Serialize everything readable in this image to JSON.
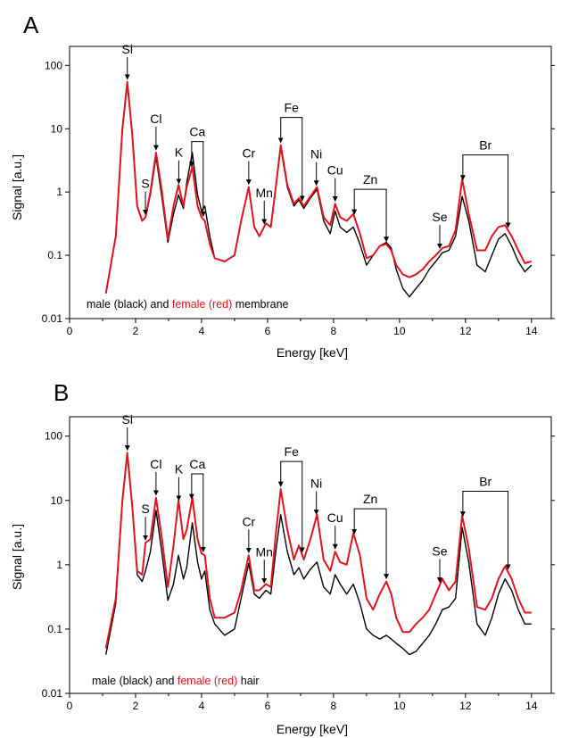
{
  "colors": {
    "male": "#000000",
    "female": "#e0141e",
    "axis": "#000000"
  },
  "chart_data": [
    {
      "type": "line",
      "panel_label": "A",
      "xlabel": "Energy [keV]",
      "ylabel": "Signal [a.u.]",
      "xlim": [
        0,
        14.6
      ],
      "ylim": [
        0.01,
        200
      ],
      "yscale": "log",
      "x_ticks": [
        "0",
        "2",
        "4",
        "6",
        "8",
        "10",
        "12",
        "14"
      ],
      "y_ticks": [
        "0.01",
        "0.1",
        "1",
        "10",
        "100"
      ],
      "caption": {
        "before": "male (black) and ",
        "highlight": "female (red)",
        "after": " membrane"
      },
      "grid": false,
      "series": [
        {
          "name": "male",
          "x": [
            1.1,
            1.4,
            1.6,
            1.75,
            1.9,
            2.05,
            2.2,
            2.3,
            2.45,
            2.62,
            2.8,
            2.98,
            3.15,
            3.3,
            3.45,
            3.55,
            3.72,
            3.88,
            4.0,
            4.1,
            4.25,
            4.4,
            4.7,
            5.0,
            5.2,
            5.43,
            5.6,
            5.75,
            5.95,
            6.1,
            6.25,
            6.4,
            6.6,
            6.8,
            6.95,
            7.1,
            7.3,
            7.5,
            7.7,
            7.9,
            8.05,
            8.2,
            8.4,
            8.6,
            8.8,
            9.0,
            9.2,
            9.4,
            9.6,
            9.75,
            9.9,
            10.1,
            10.3,
            10.5,
            10.7,
            10.9,
            11.1,
            11.3,
            11.5,
            11.7,
            11.9,
            12.1,
            12.35,
            12.6,
            12.8,
            13.0,
            13.2,
            13.4,
            13.6,
            13.8,
            14.0
          ],
          "y": [
            0.025,
            0.2,
            10,
            50,
            8,
            0.6,
            0.35,
            0.4,
            0.9,
            3.6,
            0.8,
            0.16,
            0.45,
            0.9,
            0.55,
            1.4,
            4.2,
            0.9,
            0.5,
            0.6,
            0.2,
            0.09,
            0.08,
            0.1,
            0.35,
            1.2,
            0.28,
            0.2,
            0.32,
            0.28,
            1.2,
            5,
            1.2,
            0.6,
            0.75,
            0.55,
            0.8,
            1.1,
            0.35,
            0.22,
            0.5,
            0.28,
            0.23,
            0.28,
            0.15,
            0.07,
            0.1,
            0.14,
            0.16,
            0.13,
            0.06,
            0.03,
            0.022,
            0.03,
            0.04,
            0.06,
            0.08,
            0.11,
            0.12,
            0.2,
            0.85,
            0.35,
            0.07,
            0.055,
            0.1,
            0.18,
            0.22,
            0.14,
            0.08,
            0.055,
            0.07
          ]
        },
        {
          "name": "female",
          "x": [
            1.1,
            1.4,
            1.6,
            1.75,
            1.9,
            2.05,
            2.2,
            2.3,
            2.45,
            2.62,
            2.8,
            2.98,
            3.15,
            3.3,
            3.45,
            3.55,
            3.72,
            3.88,
            4.0,
            4.1,
            4.25,
            4.4,
            4.7,
            5.0,
            5.2,
            5.43,
            5.6,
            5.75,
            5.95,
            6.1,
            6.25,
            6.4,
            6.6,
            6.8,
            6.95,
            7.1,
            7.3,
            7.5,
            7.7,
            7.9,
            8.05,
            8.2,
            8.4,
            8.6,
            8.8,
            9.0,
            9.2,
            9.4,
            9.6,
            9.75,
            9.9,
            10.1,
            10.3,
            10.5,
            10.7,
            10.9,
            11.1,
            11.3,
            11.5,
            11.7,
            11.9,
            12.1,
            12.35,
            12.6,
            12.8,
            13.0,
            13.2,
            13.4,
            13.6,
            13.8,
            14.0
          ],
          "y": [
            0.025,
            0.2,
            10,
            55,
            8,
            0.6,
            0.35,
            0.4,
            1.0,
            4.2,
            1.0,
            0.18,
            0.6,
            1.3,
            0.6,
            1.2,
            2.5,
            0.6,
            0.4,
            0.35,
            0.15,
            0.09,
            0.08,
            0.1,
            0.35,
            1.2,
            0.28,
            0.2,
            0.32,
            0.28,
            1.2,
            5.5,
            1.3,
            0.65,
            0.8,
            0.6,
            0.85,
            1.2,
            0.4,
            0.3,
            0.65,
            0.4,
            0.35,
            0.45,
            0.22,
            0.09,
            0.1,
            0.14,
            0.15,
            0.12,
            0.07,
            0.05,
            0.045,
            0.05,
            0.06,
            0.08,
            0.1,
            0.13,
            0.14,
            0.25,
            1.6,
            0.45,
            0.12,
            0.12,
            0.2,
            0.28,
            0.3,
            0.2,
            0.12,
            0.075,
            0.08
          ]
        }
      ],
      "annotations": [
        {
          "label": "Si",
          "x": 1.75,
          "arrows": [
            1.75
          ]
        },
        {
          "label": "S",
          "x": 2.3,
          "arrows": [
            2.3
          ]
        },
        {
          "label": "Cl",
          "x": 2.62,
          "arrows": [
            2.62
          ]
        },
        {
          "label": "K",
          "x": 3.31,
          "arrows": [
            3.31
          ]
        },
        {
          "label": "Ca",
          "x": 3.7,
          "arrows": [
            3.7,
            4.05
          ],
          "bracket": true
        },
        {
          "label": "Cr",
          "x": 5.43,
          "arrows": [
            5.43
          ]
        },
        {
          "label": "Mn",
          "x": 5.9,
          "arrows": [
            5.9
          ]
        },
        {
          "label": "Fe",
          "x": 6.4,
          "arrows": [
            6.4,
            7.05
          ],
          "bracket": true
        },
        {
          "label": "Ni",
          "x": 7.48,
          "arrows": [
            7.48
          ]
        },
        {
          "label": "Cu",
          "x": 8.05,
          "arrows": [
            8.05
          ]
        },
        {
          "label": "Zn",
          "x": 8.63,
          "arrows": [
            8.63,
            9.6
          ],
          "bracket": true
        },
        {
          "label": "Se",
          "x": 11.22,
          "arrows": [
            11.22
          ]
        },
        {
          "label": "Br",
          "x": 11.92,
          "arrows": [
            11.92,
            13.29
          ],
          "bracket": true
        }
      ]
    },
    {
      "type": "line",
      "panel_label": "B",
      "xlabel": "Energy [keV]",
      "ylabel": "Signal [a.u.]",
      "xlim": [
        0,
        14.6
      ],
      "ylim": [
        0.01,
        200
      ],
      "yscale": "log",
      "x_ticks": [
        "0",
        "2",
        "4",
        "6",
        "8",
        "10",
        "12",
        "14"
      ],
      "y_ticks": [
        "0.01",
        "0.1",
        "1",
        "10",
        "100"
      ],
      "caption": {
        "before": "male (black) and ",
        "highlight": "female (red)",
        "after": " hair"
      },
      "grid": false,
      "series": [
        {
          "name": "male",
          "x": [
            1.1,
            1.4,
            1.6,
            1.75,
            1.9,
            2.05,
            2.2,
            2.3,
            2.45,
            2.62,
            2.8,
            2.98,
            3.15,
            3.3,
            3.45,
            3.55,
            3.72,
            3.88,
            4.0,
            4.1,
            4.25,
            4.4,
            4.7,
            5.0,
            5.2,
            5.43,
            5.6,
            5.75,
            5.95,
            6.1,
            6.25,
            6.4,
            6.6,
            6.8,
            6.95,
            7.1,
            7.3,
            7.5,
            7.7,
            7.9,
            8.05,
            8.2,
            8.4,
            8.6,
            8.8,
            9.0,
            9.2,
            9.4,
            9.6,
            9.75,
            9.9,
            10.1,
            10.3,
            10.5,
            10.7,
            10.9,
            11.1,
            11.3,
            11.5,
            11.7,
            11.9,
            12.1,
            12.35,
            12.6,
            12.8,
            13.0,
            13.2,
            13.4,
            13.6,
            13.8,
            14.0
          ],
          "y": [
            0.04,
            0.25,
            10,
            50,
            8,
            0.7,
            0.55,
            0.8,
            1.6,
            7,
            1.5,
            0.28,
            0.5,
            1.4,
            0.6,
            0.9,
            4.5,
            1.1,
            0.6,
            0.8,
            0.2,
            0.12,
            0.08,
            0.1,
            0.3,
            1.05,
            0.35,
            0.3,
            0.4,
            0.35,
            1.6,
            6,
            1.6,
            0.7,
            0.9,
            0.6,
            0.85,
            1.1,
            0.45,
            0.35,
            0.7,
            0.5,
            0.35,
            0.5,
            0.25,
            0.1,
            0.08,
            0.07,
            0.08,
            0.07,
            0.06,
            0.05,
            0.04,
            0.045,
            0.06,
            0.08,
            0.12,
            0.2,
            0.22,
            0.3,
            3.8,
            1.1,
            0.12,
            0.08,
            0.15,
            0.35,
            0.6,
            0.4,
            0.2,
            0.12,
            0.12
          ]
        },
        {
          "name": "female",
          "x": [
            1.1,
            1.4,
            1.6,
            1.75,
            1.9,
            2.05,
            2.2,
            2.3,
            2.45,
            2.62,
            2.8,
            2.98,
            3.15,
            3.3,
            3.45,
            3.55,
            3.72,
            3.88,
            4.0,
            4.1,
            4.25,
            4.4,
            4.7,
            5.0,
            5.2,
            5.43,
            5.6,
            5.75,
            5.95,
            6.1,
            6.25,
            6.4,
            6.6,
            6.8,
            6.95,
            7.1,
            7.3,
            7.5,
            7.7,
            7.9,
            8.05,
            8.2,
            8.4,
            8.6,
            8.8,
            9.0,
            9.2,
            9.4,
            9.6,
            9.75,
            9.9,
            10.1,
            10.3,
            10.5,
            10.7,
            10.9,
            11.1,
            11.3,
            11.5,
            11.7,
            11.9,
            12.1,
            12.35,
            12.6,
            12.8,
            13.0,
            13.2,
            13.4,
            13.6,
            13.8,
            14.0
          ],
          "y": [
            0.05,
            0.3,
            10,
            55,
            8,
            0.8,
            0.7,
            2.2,
            2.5,
            11,
            2.5,
            0.45,
            2.0,
            10,
            2.5,
            3.5,
            11,
            2.5,
            1.5,
            1.4,
            0.3,
            0.15,
            0.15,
            0.18,
            0.4,
            1.4,
            0.4,
            0.4,
            0.5,
            0.45,
            3,
            15,
            3.5,
            1.2,
            2.0,
            1.2,
            2.5,
            6,
            1.2,
            0.8,
            1.6,
            1.1,
            1.0,
            3.1,
            1.4,
            0.3,
            0.2,
            0.35,
            0.55,
            0.35,
            0.15,
            0.09,
            0.09,
            0.12,
            0.15,
            0.2,
            0.35,
            0.6,
            0.4,
            0.55,
            5.8,
            1.8,
            0.22,
            0.2,
            0.3,
            0.6,
            0.95,
            0.6,
            0.3,
            0.18,
            0.18
          ]
        }
      ],
      "annotations": [
        {
          "label": "Si",
          "x": 1.75,
          "arrows": [
            1.75
          ]
        },
        {
          "label": "S",
          "x": 2.3,
          "arrows": [
            2.3
          ]
        },
        {
          "label": "Cl",
          "x": 2.62,
          "arrows": [
            2.62
          ]
        },
        {
          "label": "K",
          "x": 3.31,
          "arrows": [
            3.31
          ]
        },
        {
          "label": "Ca",
          "x": 3.7,
          "arrows": [
            3.7,
            4.05
          ],
          "bracket": true
        },
        {
          "label": "Cr",
          "x": 5.43,
          "arrows": [
            5.43
          ]
        },
        {
          "label": "Mn",
          "x": 5.9,
          "arrows": [
            5.9
          ]
        },
        {
          "label": "Fe",
          "x": 6.4,
          "arrows": [
            6.4,
            7.05
          ],
          "bracket": true
        },
        {
          "label": "Ni",
          "x": 7.48,
          "arrows": [
            7.48
          ]
        },
        {
          "label": "Cu",
          "x": 8.05,
          "arrows": [
            8.05
          ]
        },
        {
          "label": "Zn",
          "x": 8.63,
          "arrows": [
            8.63,
            9.6
          ],
          "bracket": true
        },
        {
          "label": "Se",
          "x": 11.22,
          "arrows": [
            11.22
          ]
        },
        {
          "label": "Br",
          "x": 11.92,
          "arrows": [
            11.92,
            13.29
          ],
          "bracket": true
        }
      ]
    }
  ]
}
